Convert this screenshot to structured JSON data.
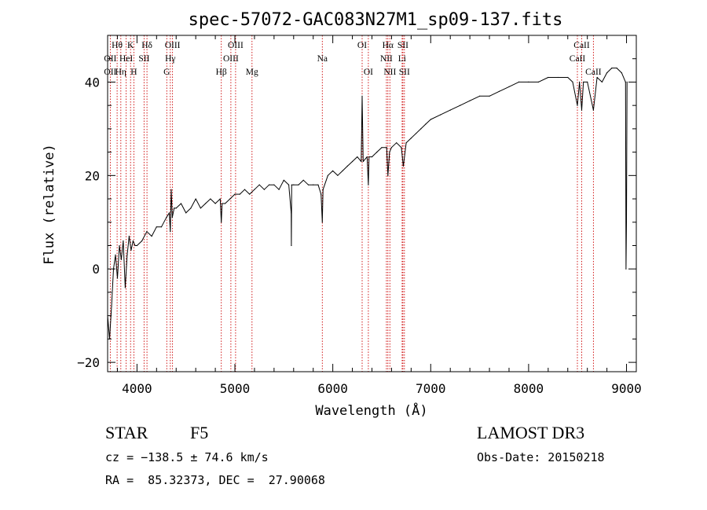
{
  "chart_data": {
    "type": "line",
    "title": "spec-57072-GAC083N27M1_sp09-137.fits",
    "xlabel": "Wavelength (Å)",
    "ylabel": "Flux (relative)",
    "xlim": [
      3700,
      9100
    ],
    "ylim": [
      -22,
      50
    ],
    "xticks": [
      4000,
      5000,
      6000,
      7000,
      8000,
      9000
    ],
    "xtick_labels": [
      "4000",
      "5000",
      "6000",
      "7000",
      "8000",
      "9000"
    ],
    "yticks": [
      -20,
      0,
      20,
      40
    ],
    "ytick_labels": [
      "−20",
      "0",
      "20",
      "40"
    ],
    "series": [
      {
        "name": "flux",
        "x": [
          3700,
          3720,
          3740,
          3760,
          3780,
          3800,
          3820,
          3840,
          3860,
          3880,
          3900,
          3920,
          3940,
          3960,
          3980,
          4000,
          4050,
          4100,
          4150,
          4200,
          4250,
          4300,
          4330,
          4340,
          4350,
          4360,
          4380,
          4400,
          4450,
          4500,
          4550,
          4600,
          4650,
          4700,
          4750,
          4800,
          4850,
          4861,
          4870,
          4900,
          4950,
          5000,
          5050,
          5100,
          5150,
          5200,
          5250,
          5300,
          5350,
          5400,
          5450,
          5500,
          5550,
          5575,
          5577,
          5580,
          5600,
          5650,
          5700,
          5750,
          5800,
          5850,
          5880,
          5893,
          5900,
          5950,
          6000,
          6050,
          6100,
          6150,
          6200,
          6250,
          6290,
          6300,
          6310,
          6350,
          6363,
          6370,
          6400,
          6450,
          6500,
          6550,
          6563,
          6580,
          6600,
          6650,
          6700,
          6720,
          6750,
          6800,
          6850,
          6900,
          6950,
          7000,
          7100,
          7200,
          7300,
          7400,
          7500,
          7600,
          7700,
          7800,
          7900,
          8000,
          8100,
          8200,
          8300,
          8400,
          8450,
          8498,
          8520,
          8542,
          8560,
          8600,
          8662,
          8700,
          8750,
          8800,
          8850,
          8900,
          8950,
          8990,
          8995,
          9000,
          9005
        ],
        "y": [
          -10,
          -15,
          -8,
          0,
          3,
          -2,
          5,
          2,
          6,
          -4,
          3,
          7,
          4,
          6,
          5,
          5,
          6,
          8,
          7,
          9,
          9,
          11,
          12,
          8,
          17,
          11,
          13,
          13,
          14,
          12,
          13,
          15,
          13,
          14,
          15,
          14,
          15,
          10,
          14,
          14,
          15,
          16,
          16,
          17,
          16,
          17,
          18,
          17,
          18,
          18,
          17,
          19,
          18,
          12,
          5,
          18,
          18,
          18,
          19,
          18,
          18,
          18,
          16,
          10,
          17,
          20,
          21,
          20,
          21,
          22,
          23,
          24,
          23,
          37,
          23,
          24,
          18,
          24,
          24,
          25,
          26,
          26,
          20,
          25,
          26,
          27,
          26,
          22,
          27,
          28,
          29,
          30,
          31,
          32,
          33,
          34,
          35,
          36,
          37,
          37,
          38,
          39,
          40,
          40,
          40,
          41,
          41,
          41,
          40,
          35,
          40,
          34,
          40,
          40,
          34,
          41,
          40,
          42,
          43,
          43,
          42,
          40,
          0,
          10,
          40
        ]
      }
    ],
    "line_groups": [
      {
        "name": "OII",
        "wl": 3727,
        "row": 3
      },
      {
        "name": "OII",
        "wl": 3727,
        "row": 2
      },
      {
        "name": "Hθ",
        "wl": 3797,
        "row": 1
      },
      {
        "name": "Hη",
        "wl": 3835,
        "row": 3
      },
      {
        "name": "HeI",
        "wl": 3889,
        "row": 2
      },
      {
        "name": "K",
        "wl": 3934,
        "row": 1
      },
      {
        "name": "H",
        "wl": 3968,
        "row": 3
      },
      {
        "name": "SII",
        "wl": 4072,
        "row": 2
      },
      {
        "name": "Hδ",
        "wl": 4102,
        "row": 1
      },
      {
        "name": "G",
        "wl": 4304,
        "row": 3
      },
      {
        "name": "Hγ",
        "wl": 4340,
        "row": 2
      },
      {
        "name": "OIII",
        "wl": 4363,
        "row": 1
      },
      {
        "name": "Hβ",
        "wl": 4861,
        "row": 3
      },
      {
        "name": "OIII",
        "wl": 4959,
        "row": 2
      },
      {
        "name": "OIII",
        "wl": 5007,
        "row": 1
      },
      {
        "name": "Mg",
        "wl": 5175,
        "row": 3
      },
      {
        "name": "Na",
        "wl": 5893,
        "row": 2
      },
      {
        "name": "OI",
        "wl": 6300,
        "row": 1
      },
      {
        "name": "OI",
        "wl": 6363,
        "row": 3
      },
      {
        "name": "NII",
        "wl": 6548,
        "row": 2
      },
      {
        "name": "Hα",
        "wl": 6563,
        "row": 1
      },
      {
        "name": "NII",
        "wl": 6583,
        "row": 3
      },
      {
        "name": "SII",
        "wl": 6716,
        "row": 1
      },
      {
        "name": "Li",
        "wl": 6708,
        "row": 2
      },
      {
        "name": "SII",
        "wl": 6731,
        "row": 3
      },
      {
        "name": "CaII",
        "wl": 8498,
        "row": 2
      },
      {
        "name": "CaII",
        "wl": 8542,
        "row": 1
      },
      {
        "name": "CaII",
        "wl": 8662,
        "row": 3
      }
    ],
    "marker_lines": [
      3727,
      3797,
      3835,
      3889,
      3934,
      3968,
      4072,
      4102,
      4304,
      4340,
      4363,
      4861,
      4959,
      5007,
      5175,
      5893,
      6300,
      6363,
      6548,
      6563,
      6583,
      6708,
      6716,
      6731,
      8498,
      8542,
      8662
    ]
  },
  "info": {
    "class_label": "STAR",
    "subclass": "F5",
    "survey": "LAMOST DR3",
    "cz": "cz = −138.5 ± 74.6 km/s",
    "obs_date": "Obs-Date: 20150218",
    "radec": "RA =  85.32373, DEC =  27.90068"
  },
  "colors": {
    "line": "#000000",
    "marker": "#cc0000",
    "background": "#ffffff"
  }
}
